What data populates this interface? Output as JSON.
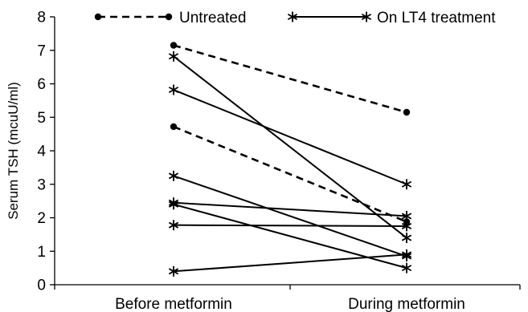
{
  "chart_data": {
    "type": "line",
    "title": "",
    "xlabel": "",
    "ylabel": "Serum TSH (mcuU/ml)",
    "categories": [
      "Before metformin",
      "During metformin"
    ],
    "ylim": [
      0,
      8
    ],
    "yticks": [
      0,
      1,
      2,
      3,
      4,
      5,
      6,
      7,
      8
    ],
    "legend_position": "top",
    "legend": [
      {
        "label": "Untreated",
        "style": "dashed",
        "marker": "dot"
      },
      {
        "label": "On LT4 treatment",
        "style": "solid",
        "marker": "star"
      }
    ],
    "series": [
      {
        "group": "Untreated",
        "values": [
          7.15,
          5.15
        ]
      },
      {
        "group": "Untreated",
        "values": [
          4.72,
          1.88
        ]
      },
      {
        "group": "On LT4 treatment",
        "values": [
          6.82,
          1.4
        ]
      },
      {
        "group": "On LT4 treatment",
        "values": [
          5.82,
          3.0
        ]
      },
      {
        "group": "On LT4 treatment",
        "values": [
          3.25,
          0.85
        ]
      },
      {
        "group": "On LT4 treatment",
        "values": [
          2.45,
          2.05
        ]
      },
      {
        "group": "On LT4 treatment",
        "values": [
          2.4,
          0.5
        ]
      },
      {
        "group": "On LT4 treatment",
        "values": [
          1.78,
          1.75
        ]
      },
      {
        "group": "On LT4 treatment",
        "values": [
          0.4,
          0.9
        ]
      }
    ]
  }
}
